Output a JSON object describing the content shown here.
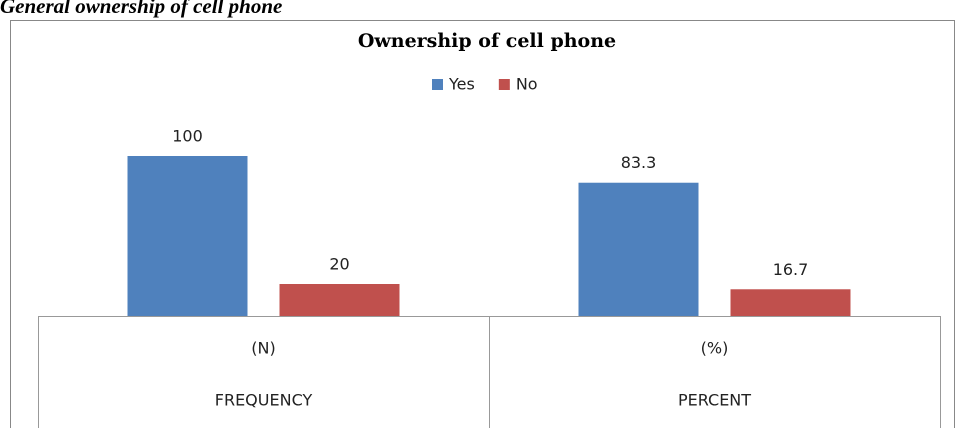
{
  "caption": "General ownership of cell phone",
  "chart_data": {
    "type": "bar",
    "title": "Ownership of cell phone",
    "categories": [
      "(N)",
      "(%)"
    ],
    "category_groups": [
      "FREQUENCY",
      "PERCENT"
    ],
    "series": [
      {
        "name": "Yes",
        "color": "#4f81bd",
        "values": [
          100,
          83.3
        ]
      },
      {
        "name": "No",
        "color": "#c0504d",
        "values": [
          20,
          16.7
        ]
      }
    ],
    "legend": "top"
  }
}
